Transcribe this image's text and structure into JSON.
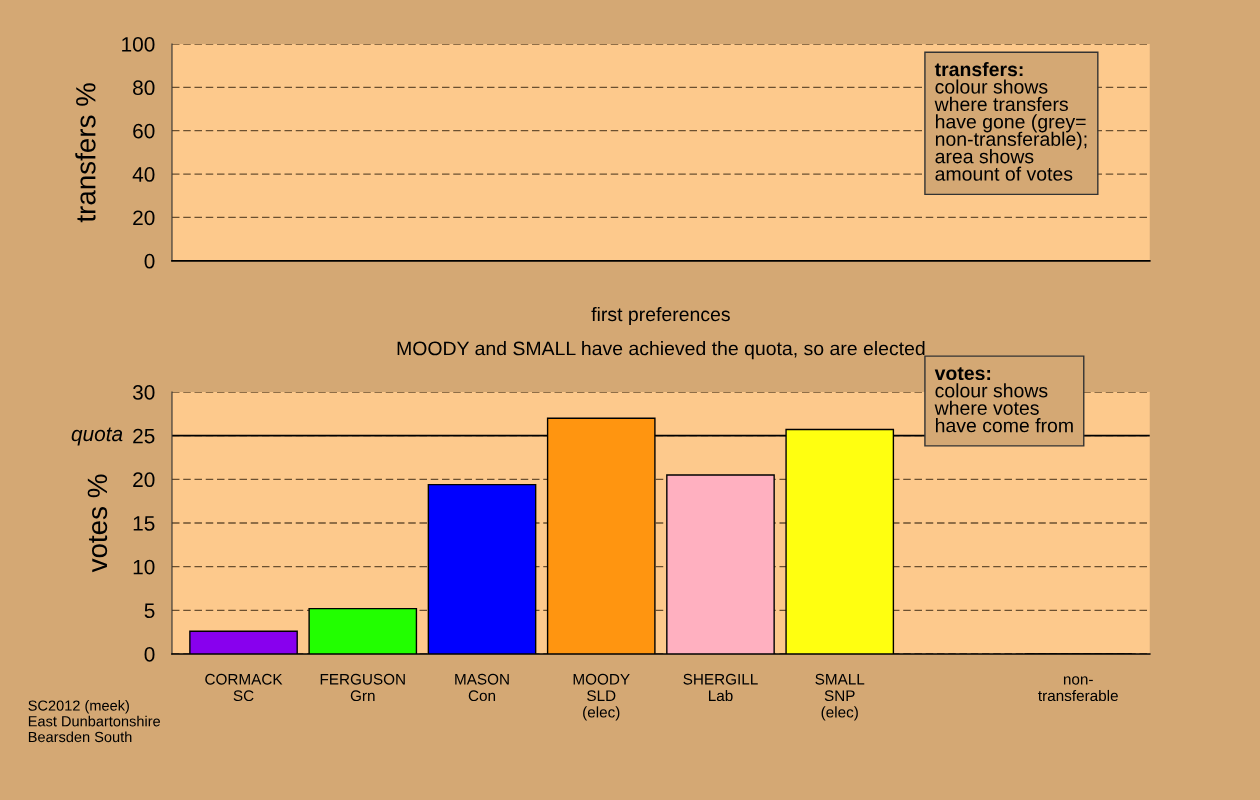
{
  "chart_data": [
    {
      "type": "bar",
      "ylabel": "transfers %",
      "categories": [
        null,
        null,
        null,
        null,
        null,
        null,
        null,
        null
      ],
      "values": [
        null,
        null,
        null,
        null,
        null,
        null,
        null,
        null
      ],
      "ylim": [
        0,
        100
      ],
      "yticks": [
        0,
        20,
        40,
        60,
        80,
        100
      ],
      "grid": "y",
      "tick_labels": "y",
      "annotations": [
        "transfers:\ncolour shows\nwhere transfers\nhave gone (grey=\nnon-transferable);\narea shows\namount of votes"
      ]
    },
    {
      "type": "bar",
      "title": "first preferences",
      "subtitle": "MOODY and SMALL have achieved the quota, so are elected",
      "ylabel": "votes %",
      "categories": [
        "CORMACK\nSC",
        "FERGUSON\nGrn",
        "MASON\nCon",
        "MOODY\nSLD\n(elec)",
        "SHERGILL\nLab",
        "SMALL\nSNP\n(elec)",
        null,
        "non-\ntransferable"
      ],
      "values": [
        2.6,
        5.2,
        19.4,
        27.0,
        20.5,
        25.7,
        null,
        0
      ],
      "colors": [
        "#8800ee",
        "#22ff00",
        "#0000ff",
        "#ff9510",
        "#ffb0c0",
        "#ffff10",
        "#888888",
        "#888888"
      ],
      "ylim": [
        0,
        30
      ],
      "yticks": [
        0,
        5,
        10,
        15,
        20,
        25,
        30
      ],
      "grid": "y",
      "ref_lines": [
        {
          "axis": "y",
          "value": 25,
          "label": "quota"
        }
      ],
      "annotations": [
        "votes:\ncolour shows\nwhere votes\nhave come from",
        "SC2012 (meek)\nEast Dunbartonshire\nBearsden South"
      ]
    }
  ]
}
